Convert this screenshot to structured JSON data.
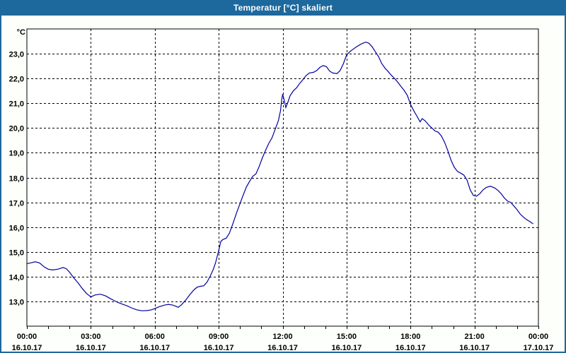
{
  "window": {
    "title": "Temperatur [°C] skaliert"
  },
  "colors": {
    "titlebar_bg": "#1d689c",
    "titlebar_text": "#ffffff",
    "window_bg": "#fcfffa",
    "plot_bg": "#ffffff",
    "plot_border": "#000000",
    "gridline": "#000000",
    "line": "#0000a0",
    "label_text": "#000000"
  },
  "chart_data": {
    "type": "line",
    "title": "Temperatur [°C] skaliert",
    "unit_label": "°C",
    "grid": "dashed",
    "legend": "none",
    "y_axis": {
      "range": [
        12,
        24
      ],
      "gridline_values": [
        13,
        14,
        15,
        16,
        17,
        18,
        19,
        20,
        21,
        22,
        23
      ],
      "tick_labels": [
        "13,0",
        "14,0",
        "15,0",
        "16,0",
        "17,0",
        "18,0",
        "19,0",
        "20,0",
        "21,0",
        "22,0",
        "23,0"
      ]
    },
    "x_axis": {
      "range_hours": [
        0,
        24
      ],
      "minor_tick_every_hours": 1,
      "gridline_hours": [
        3,
        6,
        9,
        12,
        15,
        18,
        21
      ],
      "label_hours": [
        0,
        3,
        6,
        9,
        12,
        15,
        18,
        21,
        24
      ],
      "time_labels": [
        "00:00",
        "03:00",
        "06:00",
        "09:00",
        "12:00",
        "15:00",
        "18:00",
        "21:00",
        "00:00"
      ],
      "date_labels": [
        "16.10.17",
        "16.10.17",
        "16.10.17",
        "16.10.17",
        "16.10.17",
        "16.10.17",
        "16.10.17",
        "16.10.17",
        "17.10.17"
      ]
    },
    "series": [
      {
        "name": "Temperatur",
        "color": "#0000a0",
        "points": [
          [
            0.0,
            14.52
          ],
          [
            0.2,
            14.56
          ],
          [
            0.4,
            14.6
          ],
          [
            0.6,
            14.55
          ],
          [
            0.8,
            14.4
          ],
          [
            1.0,
            14.3
          ],
          [
            1.2,
            14.27
          ],
          [
            1.45,
            14.3
          ],
          [
            1.7,
            14.37
          ],
          [
            1.85,
            14.32
          ],
          [
            2.0,
            14.18
          ],
          [
            2.2,
            13.95
          ],
          [
            2.4,
            13.75
          ],
          [
            2.6,
            13.52
          ],
          [
            2.8,
            13.32
          ],
          [
            3.0,
            13.18
          ],
          [
            3.2,
            13.26
          ],
          [
            3.45,
            13.29
          ],
          [
            3.7,
            13.22
          ],
          [
            3.9,
            13.12
          ],
          [
            4.1,
            13.03
          ],
          [
            4.3,
            12.95
          ],
          [
            4.5,
            12.88
          ],
          [
            4.7,
            12.82
          ],
          [
            4.9,
            12.74
          ],
          [
            5.15,
            12.66
          ],
          [
            5.4,
            12.62
          ],
          [
            5.65,
            12.63
          ],
          [
            5.85,
            12.66
          ],
          [
            6.0,
            12.71
          ],
          [
            6.2,
            12.78
          ],
          [
            6.45,
            12.85
          ],
          [
            6.65,
            12.88
          ],
          [
            6.85,
            12.85
          ],
          [
            7.0,
            12.8
          ],
          [
            7.1,
            12.76
          ],
          [
            7.25,
            12.86
          ],
          [
            7.45,
            13.05
          ],
          [
            7.65,
            13.28
          ],
          [
            7.85,
            13.48
          ],
          [
            8.0,
            13.58
          ],
          [
            8.15,
            13.61
          ],
          [
            8.3,
            13.63
          ],
          [
            8.45,
            13.78
          ],
          [
            8.6,
            14.02
          ],
          [
            8.75,
            14.3
          ],
          [
            8.85,
            14.55
          ],
          [
            9.0,
            15.05
          ],
          [
            9.1,
            15.42
          ],
          [
            9.2,
            15.5
          ],
          [
            9.35,
            15.55
          ],
          [
            9.5,
            15.75
          ],
          [
            9.65,
            16.1
          ],
          [
            9.85,
            16.6
          ],
          [
            10.0,
            16.95
          ],
          [
            10.15,
            17.3
          ],
          [
            10.3,
            17.62
          ],
          [
            10.45,
            17.85
          ],
          [
            10.6,
            18.05
          ],
          [
            10.75,
            18.15
          ],
          [
            10.9,
            18.45
          ],
          [
            11.05,
            18.8
          ],
          [
            11.2,
            19.1
          ],
          [
            11.35,
            19.38
          ],
          [
            11.5,
            19.6
          ],
          [
            11.65,
            19.95
          ],
          [
            11.8,
            20.3
          ],
          [
            11.9,
            20.7
          ],
          [
            11.95,
            21.1
          ],
          [
            12.0,
            21.37
          ],
          [
            12.08,
            21.1
          ],
          [
            12.15,
            20.83
          ],
          [
            12.25,
            21.05
          ],
          [
            12.35,
            21.3
          ],
          [
            12.5,
            21.5
          ],
          [
            12.65,
            21.62
          ],
          [
            12.8,
            21.8
          ],
          [
            12.95,
            21.95
          ],
          [
            13.1,
            22.12
          ],
          [
            13.25,
            22.22
          ],
          [
            13.45,
            22.25
          ],
          [
            13.6,
            22.32
          ],
          [
            13.75,
            22.45
          ],
          [
            13.9,
            22.52
          ],
          [
            14.05,
            22.48
          ],
          [
            14.2,
            22.3
          ],
          [
            14.35,
            22.22
          ],
          [
            14.55,
            22.2
          ],
          [
            14.7,
            22.32
          ],
          [
            14.85,
            22.6
          ],
          [
            15.0,
            22.95
          ],
          [
            15.15,
            23.08
          ],
          [
            15.3,
            23.18
          ],
          [
            15.5,
            23.3
          ],
          [
            15.7,
            23.4
          ],
          [
            15.9,
            23.47
          ],
          [
            16.05,
            23.42
          ],
          [
            16.2,
            23.28
          ],
          [
            16.35,
            23.08
          ],
          [
            16.5,
            22.88
          ],
          [
            16.65,
            22.6
          ],
          [
            16.8,
            22.42
          ],
          [
            16.95,
            22.28
          ],
          [
            17.1,
            22.13
          ],
          [
            17.25,
            22.0
          ],
          [
            17.4,
            21.85
          ],
          [
            17.55,
            21.68
          ],
          [
            17.7,
            21.52
          ],
          [
            17.85,
            21.32
          ],
          [
            18.0,
            20.95
          ],
          [
            18.15,
            20.7
          ],
          [
            18.3,
            20.48
          ],
          [
            18.45,
            20.25
          ],
          [
            18.55,
            20.38
          ],
          [
            18.7,
            20.28
          ],
          [
            18.85,
            20.12
          ],
          [
            19.0,
            20.0
          ],
          [
            19.15,
            19.88
          ],
          [
            19.3,
            19.83
          ],
          [
            19.45,
            19.68
          ],
          [
            19.6,
            19.42
          ],
          [
            19.75,
            19.08
          ],
          [
            19.9,
            18.7
          ],
          [
            20.05,
            18.42
          ],
          [
            20.2,
            18.25
          ],
          [
            20.35,
            18.18
          ],
          [
            20.5,
            18.1
          ],
          [
            20.65,
            17.9
          ],
          [
            20.8,
            17.5
          ],
          [
            20.95,
            17.28
          ],
          [
            21.1,
            17.25
          ],
          [
            21.25,
            17.35
          ],
          [
            21.4,
            17.5
          ],
          [
            21.55,
            17.6
          ],
          [
            21.75,
            17.65
          ],
          [
            21.95,
            17.58
          ],
          [
            22.1,
            17.48
          ],
          [
            22.25,
            17.35
          ],
          [
            22.4,
            17.18
          ],
          [
            22.55,
            17.05
          ],
          [
            22.7,
            17.0
          ],
          [
            22.85,
            16.85
          ],
          [
            23.0,
            16.7
          ],
          [
            23.15,
            16.52
          ],
          [
            23.3,
            16.4
          ],
          [
            23.45,
            16.3
          ],
          [
            23.6,
            16.22
          ],
          [
            23.75,
            16.13
          ]
        ]
      }
    ]
  }
}
